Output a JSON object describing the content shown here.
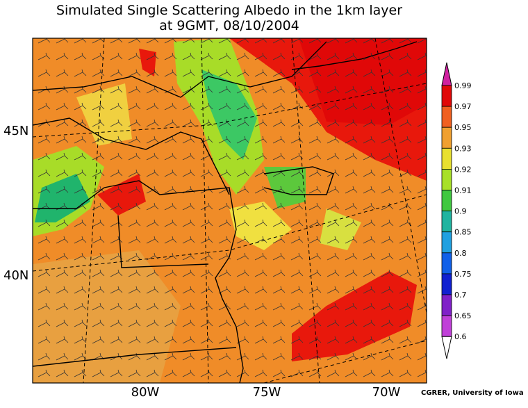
{
  "title": [
    "Simulated Single Scattering Albedo in the 1km layer",
    "at 9GMT, 08/10/2004"
  ],
  "map": {
    "lat_labels": [
      "45N",
      "40N"
    ],
    "lon_labels": [
      "80W",
      "75W",
      "70W"
    ]
  },
  "colorbar": {
    "labels": [
      "0.99",
      "0.97",
      "0.95",
      "0.93",
      "0.92",
      "0.91",
      "0.9",
      "0.85",
      "0.8",
      "0.75",
      "0.7",
      "0.65",
      "0.6"
    ]
  },
  "credit": "CGRER, University of Iowa"
}
